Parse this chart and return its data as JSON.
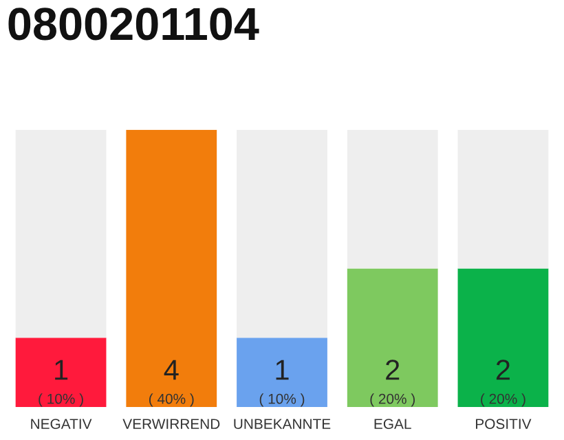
{
  "chart_data": {
    "type": "bar",
    "title": "0800201104",
    "stacked": true,
    "categories": [
      "NEGATIV",
      "VERWIRREND",
      "UNBEKANNTE",
      "EGAL",
      "POSITIV"
    ],
    "series": [
      {
        "colors": [
          "#ff1a3c",
          "#f27d0c",
          "#6aa2ee",
          "#7ec95f",
          "#0bb24a"
        ],
        "values": [
          1,
          4,
          1,
          2,
          2
        ],
        "value_labels": [
          "1\n( 10% )",
          "4\n( 40% )",
          "1\n( 10% )",
          "2\n( 20% )",
          "2\n( 20% )"
        ]
      },
      {
        "color": "#eeeeee",
        "values": [
          3,
          0,
          3,
          2,
          2
        ]
      }
    ],
    "ylim": [
      0,
      4
    ],
    "tick_labels": "x",
    "grid": false,
    "legend": false
  }
}
